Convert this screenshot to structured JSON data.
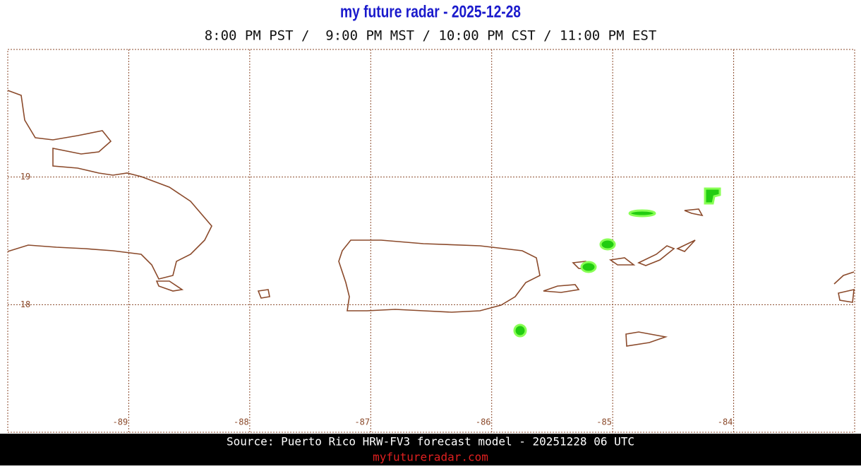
{
  "header": {
    "title": "my future radar - 2025-12-28",
    "subtitle": "8:00 PM PST /  9:00 PM MST / 10:00 PM CST / 11:00 PM EST"
  },
  "map": {
    "lon_range": [
      -90,
      -83
    ],
    "lat_range": [
      17,
      20
    ],
    "lon_ticks": [
      -89,
      -88,
      -87,
      -86,
      -85,
      -84
    ],
    "lat_ticks": [
      19,
      18
    ]
  },
  "footer": {
    "source": "Source: Puerto Rico HRW-FV3 forecast model - 20251228 06 UTC",
    "site": "myfutureradar.com"
  }
}
